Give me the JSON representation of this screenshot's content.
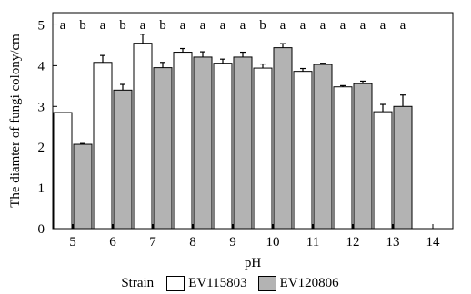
{
  "chart_data": {
    "type": "bar",
    "xlabel": "pH",
    "ylabel": "The diamter of fungi colony/cm",
    "categories": [
      "5",
      "6",
      "7",
      "8",
      "9",
      "10",
      "11",
      "12",
      "13",
      "14"
    ],
    "ylim": [
      0,
      5.3
    ],
    "yticks": [
      0,
      1,
      2,
      3,
      4,
      5
    ],
    "grid": false,
    "legend_position": "bottom",
    "legend_title": "Strain",
    "series": [
      {
        "name": "EV115803",
        "color": "#ffffff",
        "values": [
          2.85,
          4.08,
          4.55,
          4.33,
          4.06,
          3.94,
          3.86,
          3.48,
          2.87,
          null
        ],
        "errors": [
          0.0,
          0.17,
          0.22,
          0.09,
          0.1,
          0.1,
          0.07,
          0.03,
          0.18,
          null
        ]
      },
      {
        "name": "EV120806",
        "color": "#b3b3b3",
        "values": [
          2.07,
          3.4,
          3.95,
          4.21,
          4.21,
          4.44,
          4.03,
          3.56,
          3.0,
          null
        ],
        "errors": [
          0.02,
          0.14,
          0.13,
          0.13,
          0.12,
          0.1,
          0.03,
          0.06,
          0.28,
          null
        ]
      }
    ],
    "significance_letters": [
      "a",
      "b",
      "a",
      "b",
      "a",
      "b",
      "a",
      "a",
      "a",
      "a",
      "b",
      "a",
      "a",
      "a",
      "a",
      "a",
      "a",
      "a"
    ]
  }
}
